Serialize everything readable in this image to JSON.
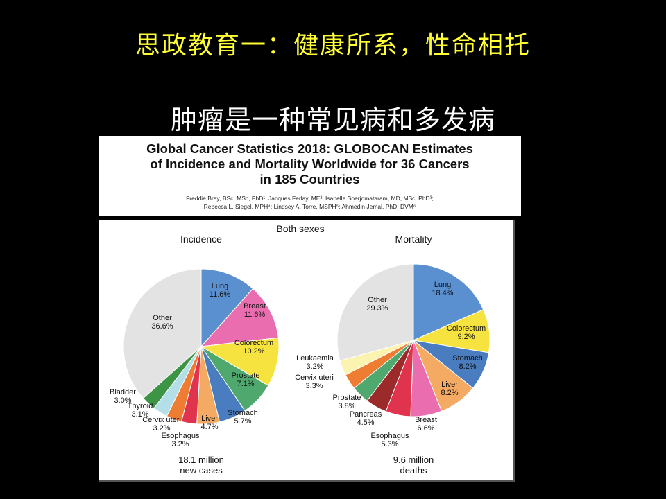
{
  "slide": {
    "title": "思政教育一：健康所系，性命相托",
    "subtitle": "肿瘤是一种常见病和多发病"
  },
  "paper": {
    "title": "Global Cancer Statistics 2018: GLOBOCAN Estimates\nof Incidence and Mortality Worldwide for 36 Cancers\nin 185 Countries",
    "authors": "Freddie Bray, BSc, MSc, PhD¹; Jacques Ferlay, ME²; Isabelle Soerjomataram, MD, MSc, PhD³;\nRebecca L. Siegel, MPH⁴; Lindsey A. Torre, MSPH⁵; Ahmedin Jemal, PhD, DVM⁶"
  },
  "figure": {
    "heading": "Both sexes"
  },
  "chart_data": [
    {
      "type": "pie",
      "title": "Incidence",
      "total_line1": "18.1 million",
      "total_line2": "new cases",
      "slices": [
        {
          "name": "Lung",
          "value": 11.6,
          "label": "11.6%",
          "color": "#5a8fd0"
        },
        {
          "name": "Breast",
          "value": 11.6,
          "label": "11.6%",
          "color": "#ea6db0"
        },
        {
          "name": "Colorectum",
          "value": 10.2,
          "label": "10.2%",
          "color": "#f6e340"
        },
        {
          "name": "Prostate",
          "value": 7.1,
          "label": "7.1%",
          "color": "#4fa86e"
        },
        {
          "name": "Stomach",
          "value": 5.7,
          "label": "5.7%",
          "color": "#4a7cc0"
        },
        {
          "name": "Liver",
          "value": 4.7,
          "label": "4.7%",
          "color": "#f4aa62"
        },
        {
          "name": "Esophagus",
          "value": 3.2,
          "label": "3.2%",
          "color": "#e0344e"
        },
        {
          "name": "Cervix uteri",
          "value": 3.2,
          "label": "3.2%",
          "color": "#ef7c33"
        },
        {
          "name": "Thyroid",
          "value": 3.1,
          "label": "3.1%",
          "color": "#b4dfe8"
        },
        {
          "name": "Bladder",
          "value": 3.0,
          "label": "3.0%",
          "color": "#3c9444"
        },
        {
          "name": "Other",
          "value": 36.6,
          "label": "36.6%",
          "color": "#e3e3e3"
        }
      ]
    },
    {
      "type": "pie",
      "title": "Mortality",
      "total_line1": "9.6 million",
      "total_line2": "deaths",
      "slices": [
        {
          "name": "Lung",
          "value": 18.4,
          "label": "18.4%",
          "color": "#5a8fd0"
        },
        {
          "name": "Colorectum",
          "value": 9.2,
          "label": "9.2%",
          "color": "#f6e340"
        },
        {
          "name": "Stomach",
          "value": 8.2,
          "label": "8.2%",
          "color": "#4a7cc0"
        },
        {
          "name": "Liver",
          "value": 8.2,
          "label": "8.2%",
          "color": "#f4aa62"
        },
        {
          "name": "Breast",
          "value": 6.6,
          "label": "6.6%",
          "color": "#ea6db0"
        },
        {
          "name": "Esophagus",
          "value": 5.3,
          "label": "5.3%",
          "color": "#e0344e"
        },
        {
          "name": "Pancreas",
          "value": 4.5,
          "label": "4.5%",
          "color": "#9b2a2a"
        },
        {
          "name": "Prostate",
          "value": 3.8,
          "label": "3.8%",
          "color": "#4fa86e"
        },
        {
          "name": "Cervix uteri",
          "value": 3.3,
          "label": "3.3%",
          "color": "#ef7c33"
        },
        {
          "name": "Leukaemia",
          "value": 3.2,
          "label": "3.2%",
          "color": "#fbf3b0"
        },
        {
          "name": "Other",
          "value": 29.3,
          "label": "29.3%",
          "color": "#e3e3e3"
        }
      ]
    }
  ]
}
